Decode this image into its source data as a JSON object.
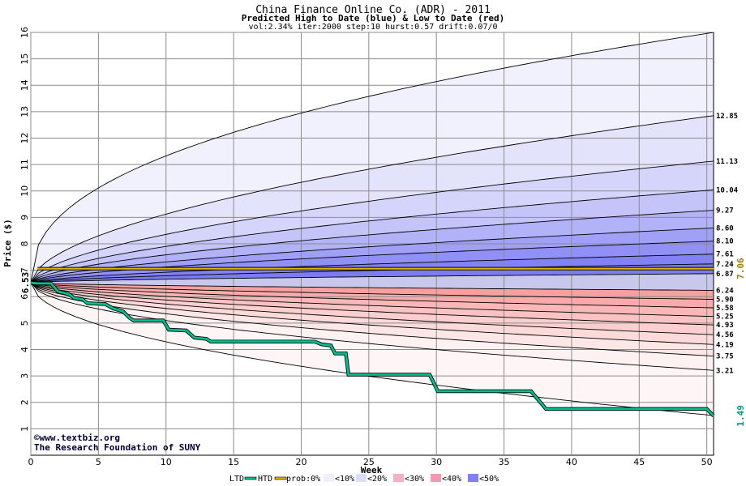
{
  "chart_data": {
    "type": "area",
    "title": "China Finance Online Co. (ADR) - 2011",
    "subtitle": "Predicted High to Date (blue) &  Low to Date (red)",
    "params": "vol:2.34% iter:2000 step:10 hurst:0.57 drift:0.07/0",
    "xlabel": "Week",
    "ylabel": "Price ($)",
    "xlim": [
      0,
      50.5
    ],
    "ylim": [
      0,
      16
    ],
    "x_ticks": [
      0,
      5,
      10,
      15,
      20,
      25,
      30,
      35,
      40,
      45,
      50
    ],
    "y_ticks": [
      1,
      2,
      3,
      4,
      5,
      6,
      7,
      8,
      9,
      10,
      11,
      12,
      13,
      14,
      15,
      16
    ],
    "grid": true,
    "start_price": 6.53,
    "start_price_label": "6.53",
    "high_quantiles": [
      {
        "end": 16.0,
        "exponent": 0.42
      },
      {
        "end": 12.85,
        "label": "12.85",
        "exponent": 0.55
      },
      {
        "end": 11.13,
        "label": "11.13",
        "exponent": 0.57
      },
      {
        "end": 10.04,
        "label": "10.04",
        "exponent": 0.58
      },
      {
        "end": 9.27,
        "label": "9.27",
        "exponent": 0.59
      },
      {
        "end": 8.6,
        "label": "8.60",
        "exponent": 0.6
      },
      {
        "end": 8.1,
        "label": "8.10",
        "exponent": 0.6
      },
      {
        "end": 7.61,
        "label": "7.61",
        "exponent": 0.62
      },
      {
        "end": 7.24,
        "label": "7.24",
        "exponent": 0.62
      },
      {
        "end": 6.87,
        "label": "6.87",
        "exponent": 0.6
      }
    ],
    "low_quantiles": [
      {
        "end": 6.24,
        "label": "6.24",
        "exponent": 0.6
      },
      {
        "end": 5.9,
        "label": "5.90",
        "exponent": 0.58
      },
      {
        "end": 5.58,
        "label": "5.58",
        "exponent": 0.57
      },
      {
        "end": 5.25,
        "label": "5.25",
        "exponent": 0.56
      },
      {
        "end": 4.93,
        "label": "4.93",
        "exponent": 0.55
      },
      {
        "end": 4.56,
        "label": "4.56",
        "exponent": 0.55
      },
      {
        "end": 4.19,
        "label": "4.19",
        "exponent": 0.54
      },
      {
        "end": 3.75,
        "label": "3.75",
        "exponent": 0.53
      },
      {
        "end": 3.21,
        "label": "3.21",
        "exponent": 0.52
      },
      {
        "end": 1.5,
        "exponent": 0.5
      }
    ],
    "high_band_colors": [
      "#f1f1fe",
      "#e3e3fc",
      "#d5d5fb",
      "#c4c4f9",
      "#b2b2f8",
      "#a0a0f7",
      "#9090f6",
      "#8282f5",
      "#7b7bf4"
    ],
    "low_band_colors": [
      "#f8a0a0",
      "#f9abab",
      "#f9b7b7",
      "#fac3c3",
      "#fbcfcf",
      "#fcdada",
      "#fde6e6",
      "#fef1f1",
      "#fef6f6"
    ],
    "htd_level": 7.06,
    "htd_label": "7.06",
    "htd_color": "#e6b400",
    "ltd_final_label": "1.49",
    "ltd_color": "#00c090",
    "ltd_path": [
      [
        0,
        6.53
      ],
      [
        0.4,
        6.5
      ],
      [
        1.5,
        6.5
      ],
      [
        2,
        6.2
      ],
      [
        2.8,
        6.1
      ],
      [
        3.2,
        5.95
      ],
      [
        3.8,
        5.9
      ],
      [
        4.2,
        5.75
      ],
      [
        5.5,
        5.72
      ],
      [
        6.1,
        5.55
      ],
      [
        6.8,
        5.45
      ],
      [
        7.3,
        5.2
      ],
      [
        7.6,
        5.1
      ],
      [
        9.8,
        5.1
      ],
      [
        10.2,
        4.75
      ],
      [
        11.5,
        4.72
      ],
      [
        12.1,
        4.45
      ],
      [
        13,
        4.4
      ],
      [
        13.3,
        4.3
      ],
      [
        21,
        4.3
      ],
      [
        21.5,
        4.2
      ],
      [
        22.2,
        4.15
      ],
      [
        22.5,
        3.85
      ],
      [
        23.3,
        3.85
      ],
      [
        23.5,
        3.05
      ],
      [
        29.5,
        3.05
      ],
      [
        30.1,
        2.42
      ],
      [
        37,
        2.42
      ],
      [
        38.1,
        1.75
      ],
      [
        50,
        1.75
      ],
      [
        50.5,
        1.49
      ]
    ],
    "watermark_line1": "©www.textbiz.org",
    "watermark_line2": "The Research Foundation of SUNY",
    "legend": [
      "LTD",
      "HTD",
      "prob:0%",
      "<10%",
      "<20%",
      "<30%",
      "<40%",
      "<50%"
    ],
    "legend_colors": [
      "#00c090",
      "#e6b400",
      "#ffffff",
      "#f1f1fe",
      "#dcdcfc",
      "#f3b0c8",
      "#f29ab0",
      "#8080f5"
    ]
  }
}
